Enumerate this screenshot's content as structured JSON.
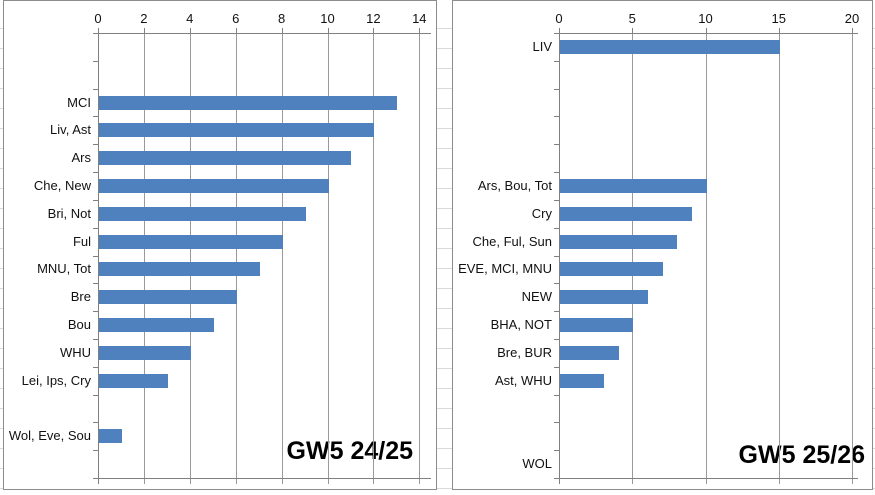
{
  "chart_data": [
    {
      "type": "bar",
      "orientation": "horizontal",
      "title": "GW5 24/25",
      "legend": "none",
      "grid": "vertical-major",
      "bar_color": "#4e81bd",
      "value_axis_position": "top",
      "x_axis": {
        "min": 0,
        "max": 14,
        "step": 2,
        "tick_labels": [
          "0",
          "2",
          "4",
          "6",
          "8",
          "10",
          "12",
          "14"
        ]
      },
      "categories": [
        "",
        "",
        "MCI",
        "Liv, Ast",
        "Ars",
        "Che, New",
        "Bri, Not",
        "Ful",
        "MNU, Tot",
        "Bre",
        "Bou",
        "WHU",
        "Lei, Ips, Cry",
        "",
        "Wol, Eve, Sou",
        ""
      ],
      "values": [
        null,
        null,
        13,
        12,
        11,
        10,
        9,
        8,
        7,
        6,
        5,
        4,
        3,
        null,
        1,
        null
      ]
    },
    {
      "type": "bar",
      "orientation": "horizontal",
      "title": "GW5 25/26",
      "legend": "none",
      "grid": "vertical-major",
      "bar_color": "#4e81bd",
      "value_axis_position": "top",
      "x_axis": {
        "min": 0,
        "max": 20,
        "step": 5,
        "tick_labels": [
          "0",
          "5",
          "10",
          "15",
          "20"
        ]
      },
      "categories": [
        "LIV",
        "",
        "",
        "",
        "",
        "Ars, Bou, Tot",
        "Cry",
        "Che, Ful, Sun",
        "EVE, MCI, MNU",
        "NEW",
        "BHA, NOT",
        "Bre, BUR",
        "Ast, WHU",
        "",
        "",
        "WOL"
      ],
      "values": [
        15,
        null,
        null,
        null,
        null,
        10,
        9,
        8,
        7,
        6,
        5,
        4,
        3,
        null,
        null,
        0
      ]
    }
  ]
}
